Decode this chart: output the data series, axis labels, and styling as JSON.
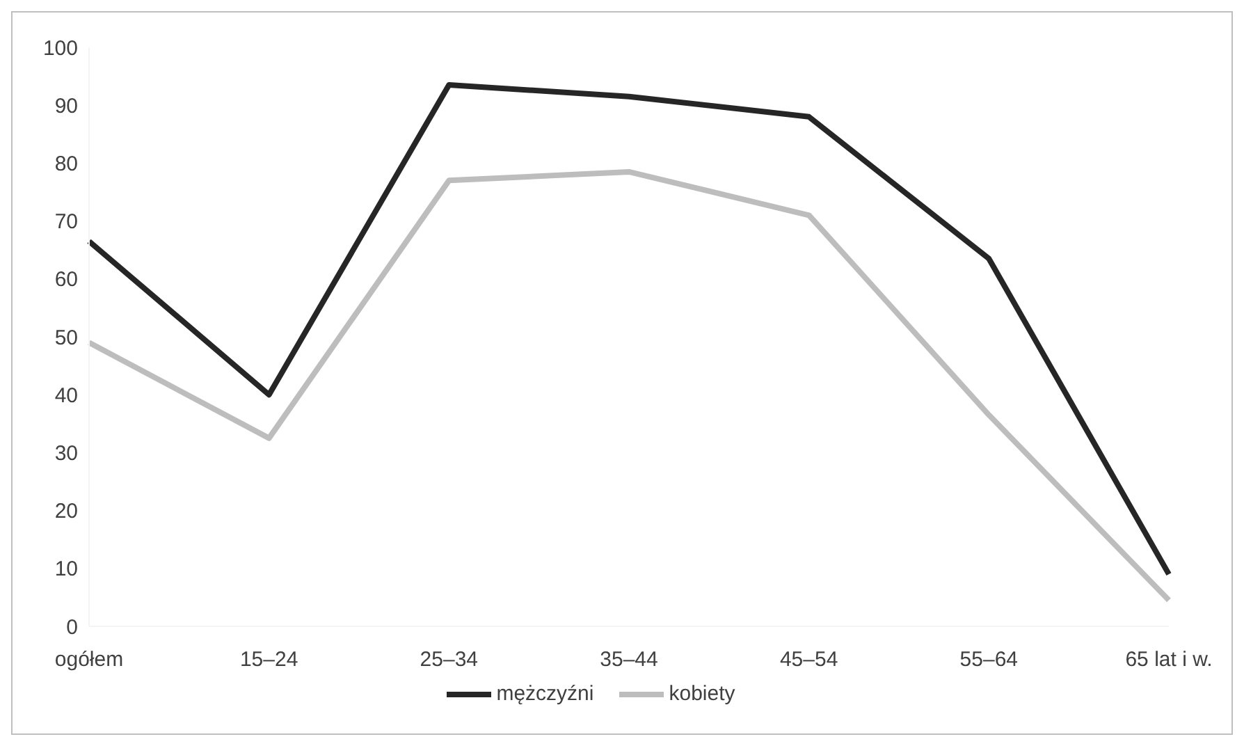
{
  "chart_data": {
    "type": "line",
    "categories": [
      "ogółem",
      "15–24",
      "25–34",
      "35–44",
      "45–54",
      "55–64",
      "65 lat i w."
    ],
    "series": [
      {
        "name": "mężczyźni",
        "color": "#262626",
        "values": [
          66.5,
          40,
          93.5,
          91.5,
          88,
          63.5,
          9
        ]
      },
      {
        "name": "kobiety",
        "color": "#bdbdbd",
        "values": [
          49,
          32.5,
          77,
          78.5,
          71,
          36.5,
          4.5
        ]
      }
    ],
    "ylim": [
      0,
      100
    ],
    "yticks": [
      0,
      10,
      20,
      30,
      40,
      50,
      60,
      70,
      80,
      90,
      100
    ],
    "grid": false,
    "legend": "bottom",
    "marker": "none",
    "line_style": "solid"
  }
}
